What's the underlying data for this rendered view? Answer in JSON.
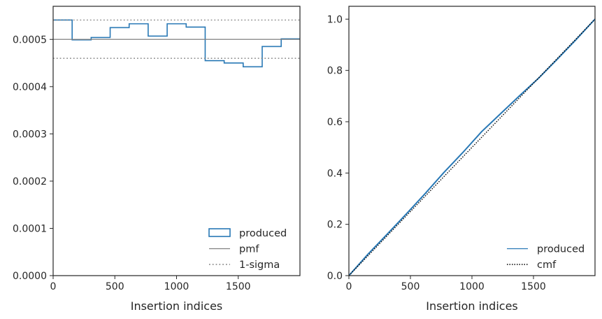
{
  "chart_data": [
    {
      "type": "histogram",
      "xlabel": "Insertion indices",
      "ylabel": "",
      "xlim": [
        0,
        2000
      ],
      "ylim": [
        0,
        0.00057
      ],
      "xticks": [
        0,
        500,
        1000,
        1500
      ],
      "yticks": [
        0,
        0.0001,
        0.0002,
        0.0003,
        0.0004,
        0.0005
      ],
      "ytick_labels": [
        "0.0000",
        "0.0001",
        "0.0002",
        "0.0003",
        "0.0004",
        "0.0005"
      ],
      "bin_edges": [
        0,
        154,
        308,
        462,
        616,
        770,
        924,
        1078,
        1232,
        1386,
        1540,
        1694,
        1848,
        2000
      ],
      "series": [
        {
          "name": "produced",
          "style": "step",
          "color": "#2878b5",
          "values": [
            0.000541,
            0.000499,
            0.000504,
            0.000525,
            0.000533,
            0.000507,
            0.000533,
            0.000526,
            0.000455,
            0.00045,
            0.000442,
            0.000485,
            0.000501
          ]
        },
        {
          "name": "pmf",
          "style": "solid",
          "color": "#808080",
          "value": 0.0005
        },
        {
          "name": "1-sigma",
          "style": "dotted",
          "color": "#808080",
          "values": [
            0.000541,
            0.00046
          ]
        }
      ],
      "legend": {
        "position": "bottom-right",
        "entries": [
          "produced",
          "pmf",
          "1-sigma"
        ]
      }
    },
    {
      "type": "line",
      "xlabel": "Insertion indices",
      "ylabel": "",
      "xlim": [
        0,
        2000
      ],
      "ylim": [
        0,
        1.05
      ],
      "xticks": [
        0,
        500,
        1000,
        1500
      ],
      "yticks": [
        0,
        0.2,
        0.4,
        0.6,
        0.8,
        1.0
      ],
      "ytick_labels": [
        "0.0",
        "0.2",
        "0.4",
        "0.6",
        "0.8",
        "1.0"
      ],
      "series": [
        {
          "name": "produced",
          "style": "solid",
          "color": "#2878b5",
          "x": [
            0,
            154,
            308,
            462,
            616,
            770,
            924,
            1078,
            1232,
            1386,
            1540,
            1694,
            1848,
            2000
          ],
          "y": [
            0,
            0.083,
            0.16,
            0.238,
            0.318,
            0.401,
            0.479,
            0.561,
            0.631,
            0.701,
            0.769,
            0.844,
            0.921,
            1.0
          ]
        },
        {
          "name": "cmf",
          "style": "dotted",
          "color": "#000000",
          "x": [
            0,
            2000
          ],
          "y": [
            0,
            1.0
          ]
        }
      ],
      "legend": {
        "position": "bottom-right",
        "entries": [
          "produced",
          "cmf"
        ]
      }
    }
  ]
}
